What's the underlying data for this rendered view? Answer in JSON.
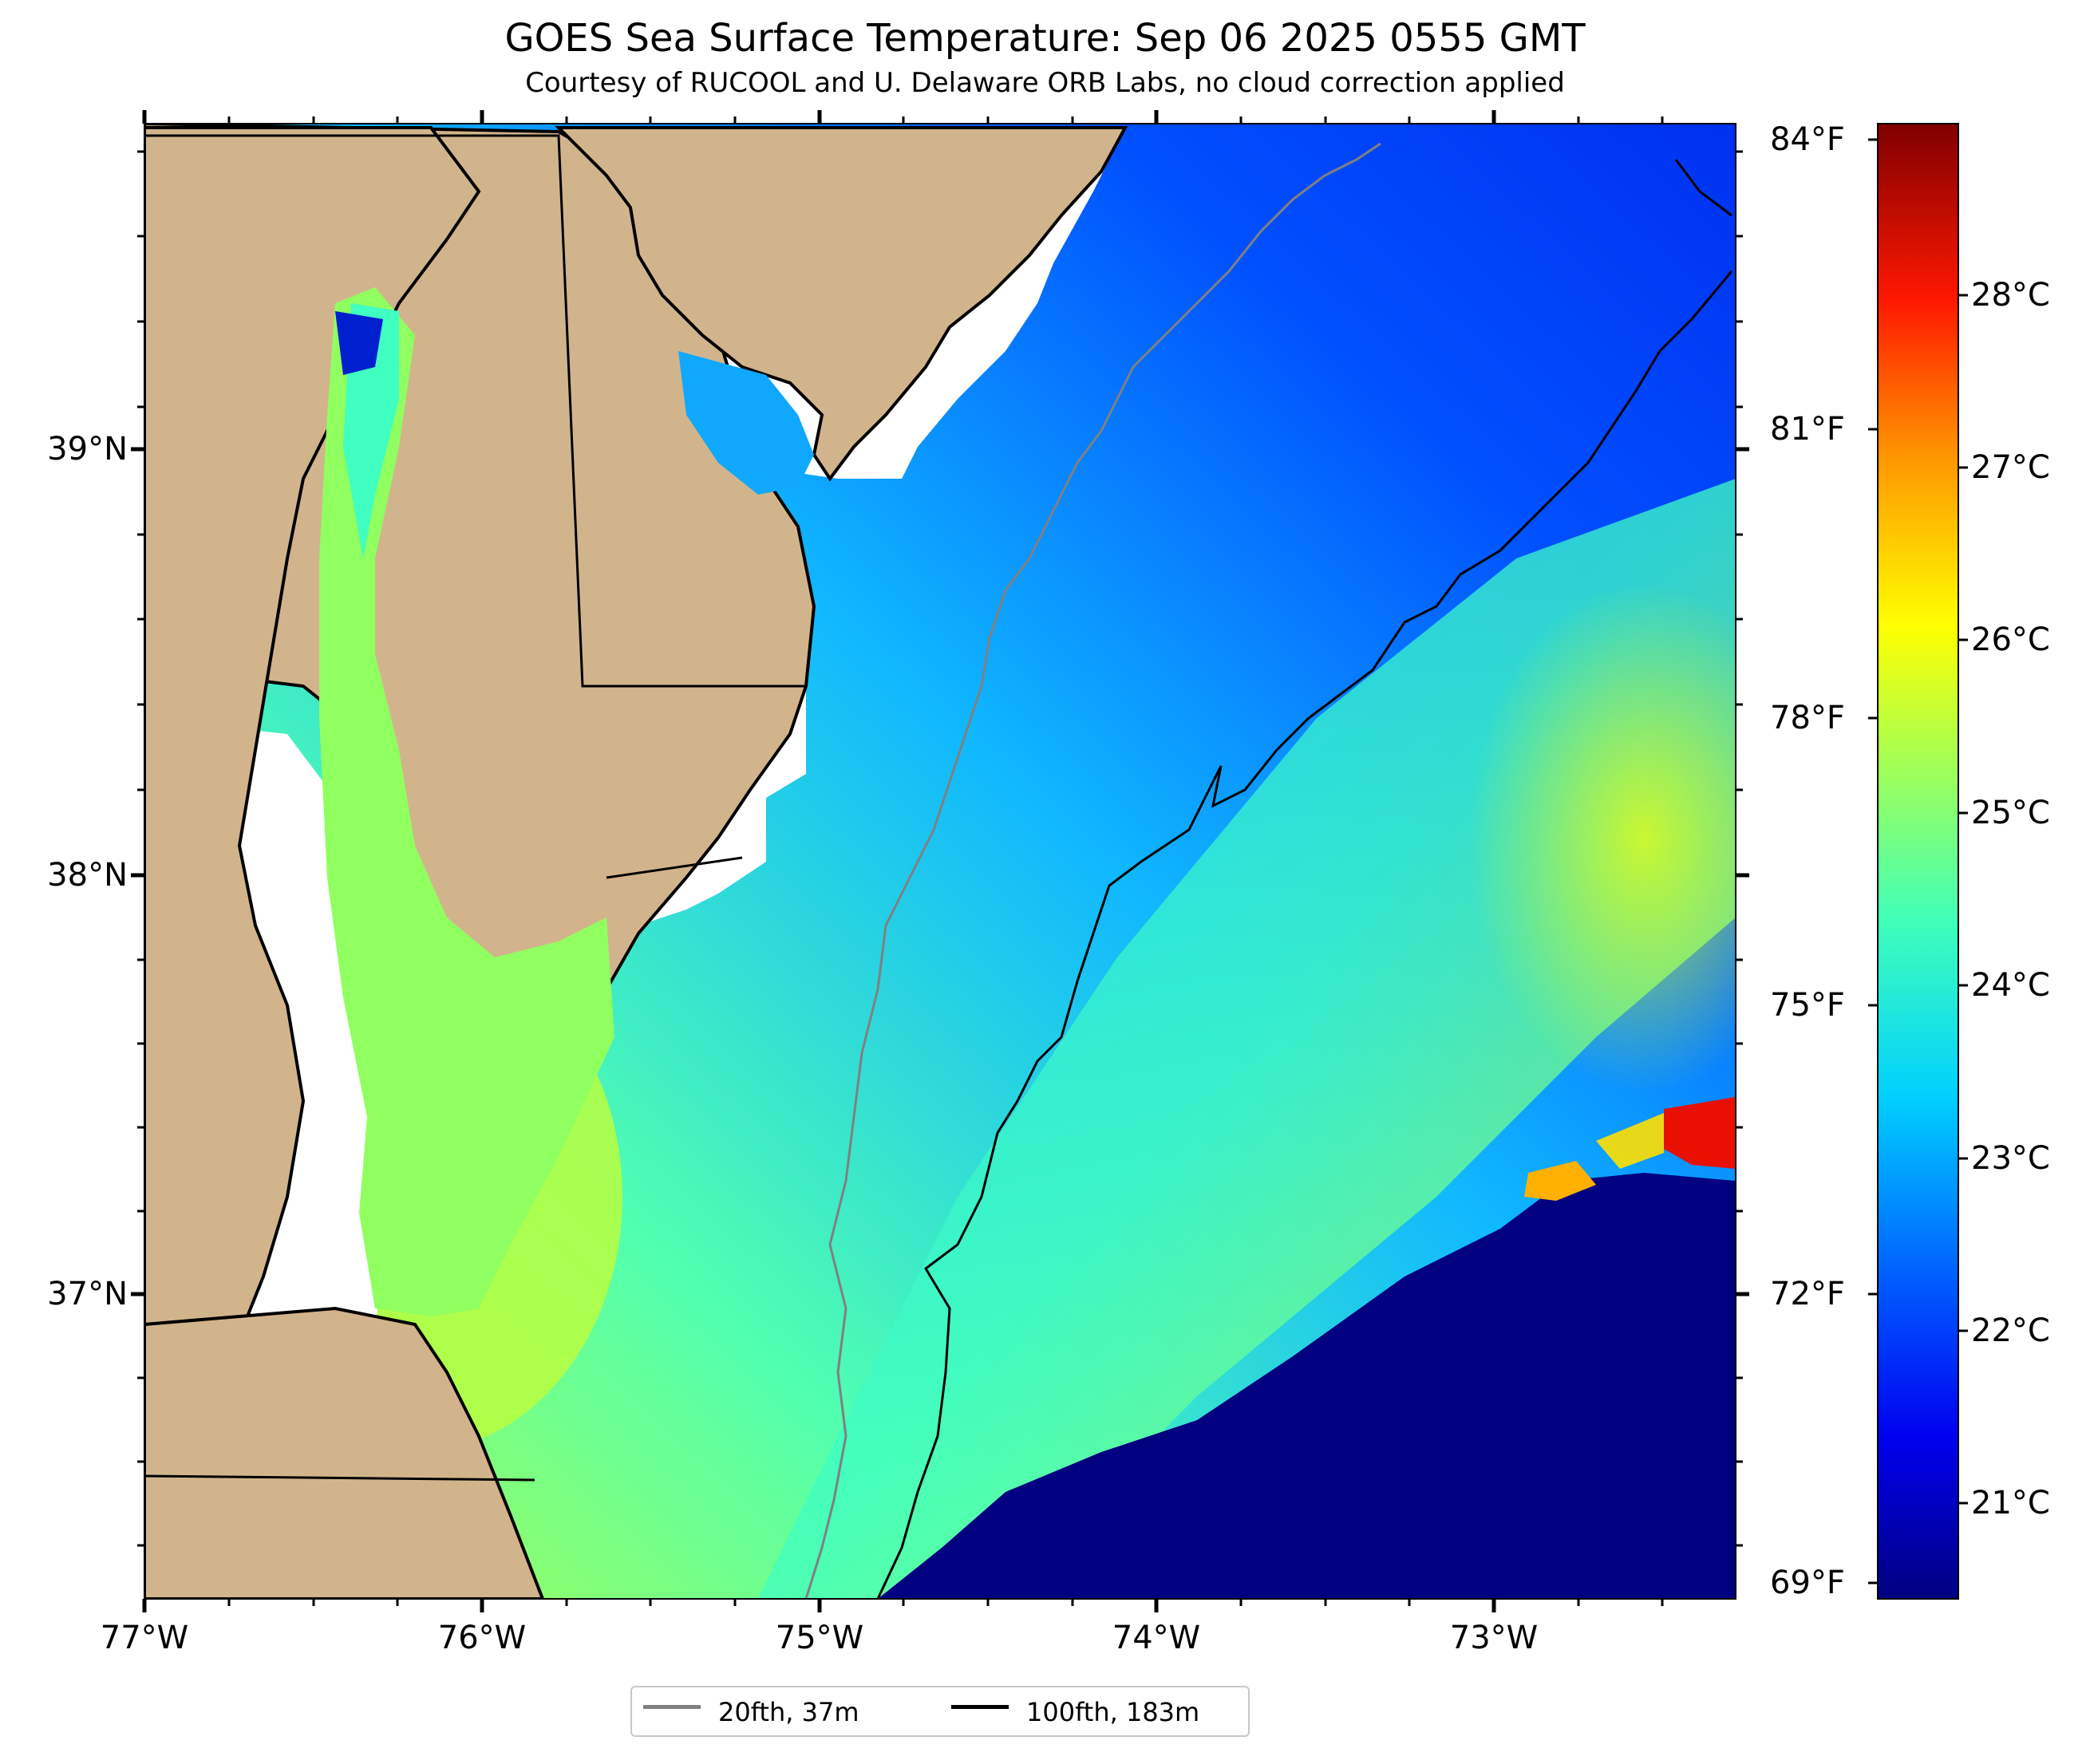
{
  "title": "GOES Sea Surface Temperature: Sep 06 2025 0555 GMT",
  "subtitle": "Courtesy of RUCOOL and U. Delaware ORB Labs, no cloud correction applied",
  "lat_labels": [
    "39°N",
    "38°N",
    "37°N"
  ],
  "lon_labels": [
    "77°W",
    "76°W",
    "75°W",
    "74°W",
    "73°W"
  ],
  "fahrenheit_labels": [
    "84°F",
    "81°F",
    "78°F",
    "75°F",
    "72°F",
    "69°F"
  ],
  "celsius_labels": [
    "28°C",
    "27°C",
    "26°C",
    "25°C",
    "24°C",
    "23°C",
    "22°C",
    "21°C"
  ],
  "legend": {
    "items": [
      {
        "label": "20fth, 37m",
        "color": "#808080"
      },
      {
        "label": "100fth, 183m",
        "color": "#000000"
      }
    ]
  },
  "colors": {
    "land": "#d2b48c",
    "no_data": "#ffffff",
    "cold_mask": "#000080"
  }
}
